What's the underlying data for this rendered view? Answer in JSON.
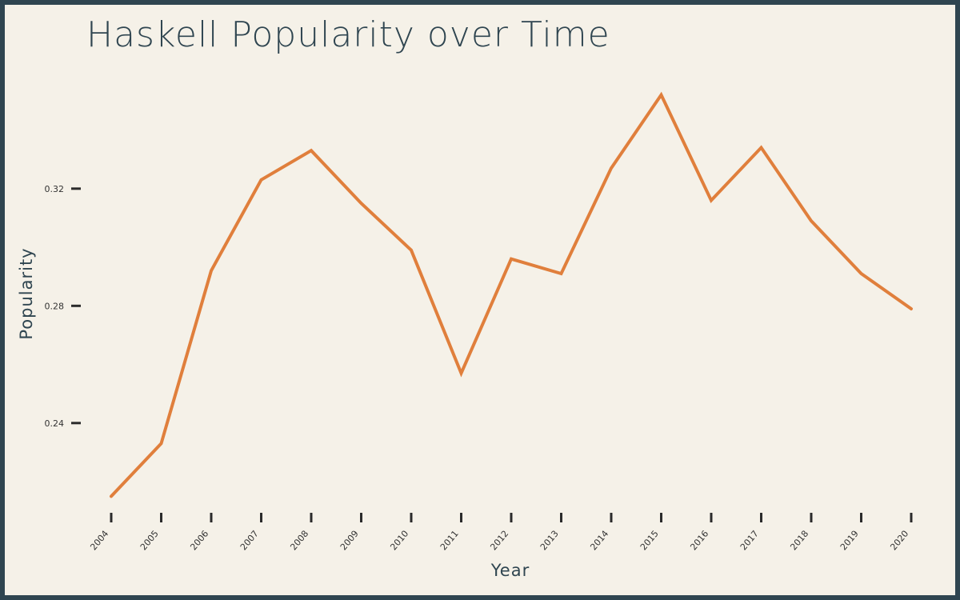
{
  "colors": {
    "background": "#f5f1e8",
    "border": "#2f4550",
    "line": "#e07f3c",
    "title": "#2f4550",
    "tick": "#2b2b2b"
  },
  "chart_data": {
    "type": "line",
    "title": "Haskell Popularity over Time",
    "xlabel": "Year",
    "ylabel": "Popularity",
    "x": [
      "2004",
      "2005",
      "2006",
      "2007",
      "2008",
      "2009",
      "2010",
      "2011",
      "2012",
      "2013",
      "2014",
      "2015",
      "2016",
      "2017",
      "2018",
      "2019",
      "2020"
    ],
    "series": [
      {
        "values": [
          0.215,
          0.233,
          0.292,
          0.323,
          0.333,
          0.315,
          0.299,
          0.257,
          0.296,
          0.291,
          0.327,
          0.352,
          0.316,
          0.334,
          0.309,
          0.291,
          0.279
        ]
      }
    ],
    "yticks": [
      0.24,
      0.28,
      0.32
    ],
    "ytick_labels": [
      "0.24",
      "0.28",
      "0.32"
    ],
    "ylim": [
      0.205,
      0.365
    ],
    "grid": false,
    "legend": "none"
  }
}
